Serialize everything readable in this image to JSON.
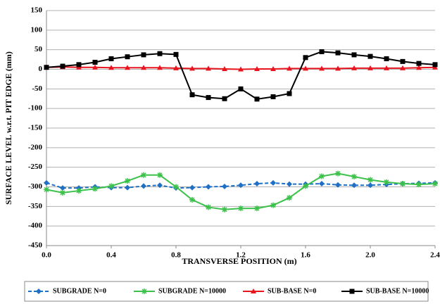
{
  "chart_data": {
    "type": "line",
    "x_label": "TRANSVERSE POSITION (m)",
    "y_label": "SURFACE LEVEL w.r.t. PIT EDGE (mm)",
    "x": [
      0,
      0.1,
      0.2,
      0.3,
      0.4,
      0.5,
      0.6,
      0.7,
      0.8,
      0.9,
      1.0,
      1.1,
      1.2,
      1.3,
      1.4,
      1.5,
      1.6,
      1.7,
      1.8,
      1.9,
      2.0,
      2.1,
      2.2,
      2.3,
      2.4
    ],
    "xlim": [
      0,
      2.4
    ],
    "xticks": [
      {
        "value": 0,
        "label": "0.0"
      },
      0.4,
      0.8,
      1.2,
      1.6,
      {
        "value": 2,
        "label": "2.0"
      },
      2.4
    ],
    "ylim": [
      -450,
      150
    ],
    "yticks": [
      -450,
      -400,
      -350,
      -300,
      -250,
      -200,
      -150,
      -100,
      -50,
      0,
      50,
      100,
      150
    ],
    "grid": true,
    "legend": "bottom",
    "series": [
      {
        "name": "SUBGRADE N=0",
        "color": "#1f6fc4",
        "marker": "diamond",
        "dashed": true,
        "values": [
          -290,
          -303,
          -303,
          -300,
          -302,
          -302,
          -298,
          -296,
          -303,
          -302,
          -300,
          -299,
          -296,
          -292,
          -290,
          -293,
          -293,
          -292,
          -295,
          -296,
          -296,
          -294,
          -292,
          -291,
          -290
        ]
      },
      {
        "name": "SUBGRADE N=10000",
        "color": "#3cc24a",
        "marker": "star",
        "dashed": false,
        "values": [
          -307,
          -315,
          -310,
          -305,
          -298,
          -285,
          -270,
          -270,
          -300,
          -333,
          -352,
          -358,
          -355,
          -355,
          -347,
          -328,
          -298,
          -273,
          -266,
          -274,
          -282,
          -288,
          -292,
          -294,
          -292
        ]
      },
      {
        "name": "SUB-BASE N=0",
        "color": "#e8141e",
        "marker": "triangle",
        "dashed": false,
        "values": [
          5,
          6,
          5,
          5,
          4,
          4,
          4,
          4,
          3,
          2,
          2,
          1,
          0,
          1,
          1,
          2,
          2,
          2,
          2,
          3,
          3,
          3,
          3,
          4,
          5
        ]
      },
      {
        "name": "SUB-BASE N=10000",
        "color": "#000000",
        "marker": "square",
        "dashed": false,
        "values": [
          5,
          8,
          12,
          18,
          27,
          32,
          37,
          40,
          38,
          -65,
          -72,
          -75,
          -50,
          -76,
          -70,
          -62,
          30,
          45,
          42,
          37,
          33,
          27,
          20,
          15,
          12
        ]
      }
    ]
  }
}
